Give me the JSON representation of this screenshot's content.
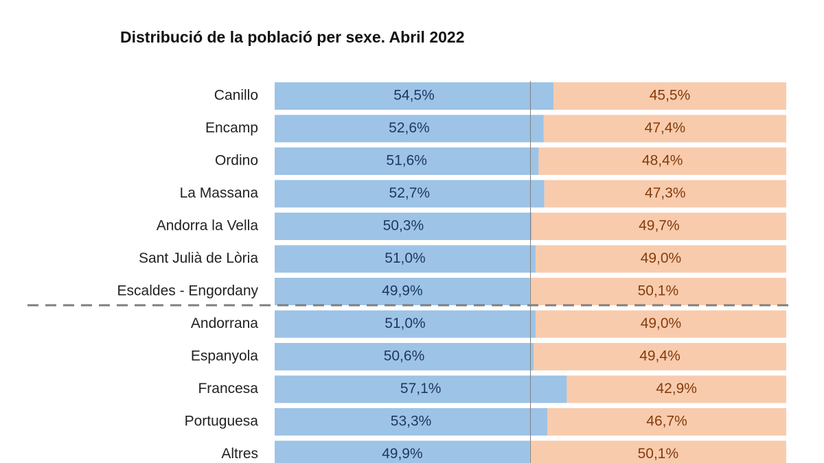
{
  "chart_data": {
    "type": "stacked-bar-100",
    "title": "Distribució de la població per sexe. Abril 2022",
    "categories": [
      "Canillo",
      "Encamp",
      "Ordino",
      "La Massana",
      "Andorra la Vella",
      "Sant Julià de Lòria",
      "Escaldes - Engordany",
      "Andorrana",
      "Espanyola",
      "Francesa",
      "Portuguesa",
      "Altres"
    ],
    "xlim": [
      0,
      100
    ],
    "series": [
      {
        "color": "#9dc3e6",
        "label_color": "#1f3864",
        "values": [
          54.5,
          52.6,
          51.6,
          52.7,
          50.3,
          51.0,
          49.9,
          51.0,
          50.6,
          57.1,
          53.3,
          49.9
        ],
        "value_labels": [
          "54,5%",
          "52,6%",
          "51,6%",
          "52,7%",
          "50,3%",
          "51,0%",
          "49,9%",
          "51,0%",
          "50,6%",
          "57,1%",
          "53,3%",
          "49,9%"
        ]
      },
      {
        "color": "#f8cbad",
        "label_color": "#843c0c",
        "values": [
          45.5,
          47.4,
          48.4,
          47.3,
          49.7,
          49.0,
          50.1,
          49.0,
          49.4,
          42.9,
          46.7,
          50.1
        ],
        "value_labels": [
          "45,5%",
          "47,4%",
          "48,4%",
          "47,3%",
          "49,7%",
          "49,0%",
          "50,1%",
          "49,0%",
          "49,4%",
          "42,9%",
          "46,7%",
          "50,1%"
        ]
      }
    ]
  }
}
